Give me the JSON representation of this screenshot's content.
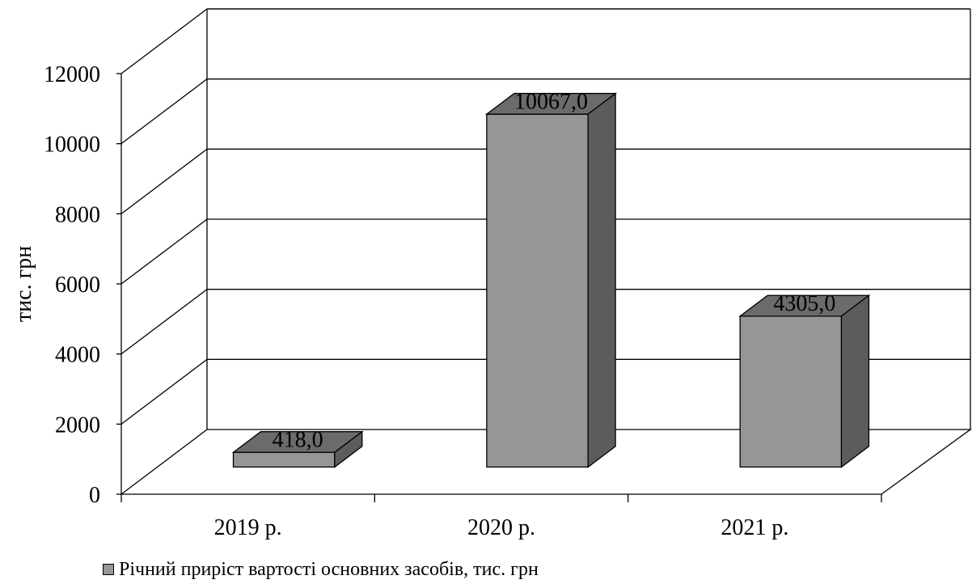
{
  "chart_data": {
    "type": "bar",
    "three_d": true,
    "categories": [
      "2019 р.",
      "2020 р.",
      "2021 р."
    ],
    "series": [
      {
        "name": "Річний приріст вартості основних засобів, тис. грн",
        "values": [
          418.0,
          10067.0,
          4305.0
        ],
        "data_labels": [
          "418,0",
          "10067,0",
          "4305,0"
        ]
      }
    ],
    "ylabel": "тис. грн",
    "xlabel": "",
    "ylim": [
      0,
      12000
    ],
    "yticks": [
      0,
      2000,
      4000,
      6000,
      8000,
      10000,
      12000
    ],
    "grid": true,
    "legend_position": "bottom-left",
    "colors": {
      "bar_front": "#969696",
      "bar_top": "#6b6b6b",
      "bar_side": "#5c5c5c",
      "gridline": "#000000",
      "background": "#ffffff"
    }
  }
}
